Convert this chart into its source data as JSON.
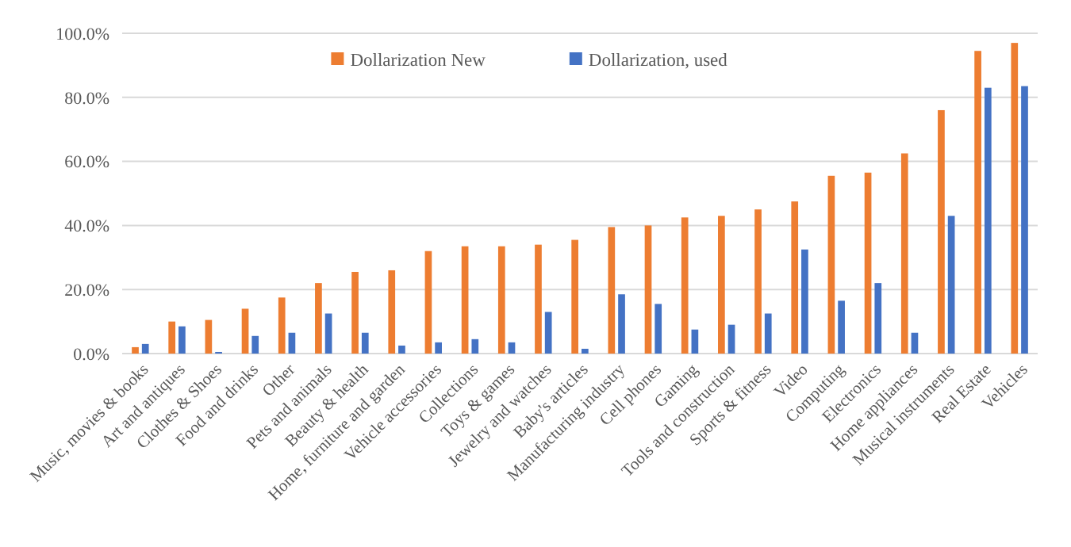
{
  "chart_data": {
    "type": "bar",
    "categories": [
      "Music, movies & books",
      "Art and antiques",
      "Clothes & Shoes",
      "Food and drinks",
      "Other",
      "Pets and animals",
      "Beauty & health",
      "Home, furniture and garden",
      "Vehicle accessories",
      "Collections",
      "Toys & games",
      "Jewelry and watches",
      "Baby's articles",
      "Manufacturing industry",
      "Cell phones",
      "Gaming",
      "Tools and construction",
      "Sports & fitness",
      "Video",
      "Computing",
      "Electronics",
      "Home appliances",
      "Musical instruments",
      "Real Estate",
      "Vehicles"
    ],
    "series": [
      {
        "name": "Dollarization New",
        "color": "#ed7d31",
        "values": [
          2,
          10,
          10.5,
          14,
          17.5,
          22,
          25.5,
          26,
          32,
          33.5,
          33.5,
          34,
          35.5,
          39.5,
          40,
          42.5,
          43,
          45,
          47.5,
          55.5,
          56.5,
          62.5,
          76,
          94.5,
          97
        ]
      },
      {
        "name": "Dollarization, used",
        "color": "#4472c4",
        "values": [
          3,
          8.5,
          0.5,
          5.5,
          6.5,
          12.5,
          6.5,
          2.5,
          3.5,
          4.5,
          3.5,
          13,
          1.5,
          18.5,
          15.5,
          7.5,
          9,
          12.5,
          32.5,
          16.5,
          22,
          6.5,
          43,
          83,
          83.5
        ]
      }
    ],
    "ylim": [
      0,
      100
    ],
    "yticks": [
      {
        "value": 0,
        "label": "0.0%"
      },
      {
        "value": 20,
        "label": "20.0%"
      },
      {
        "value": 40,
        "label": "40.0%"
      },
      {
        "value": 60,
        "label": "60.0%"
      },
      {
        "value": 80,
        "label": "80.0%"
      },
      {
        "value": 100,
        "label": "100.0%"
      }
    ],
    "grid": "y",
    "legend": "top"
  }
}
